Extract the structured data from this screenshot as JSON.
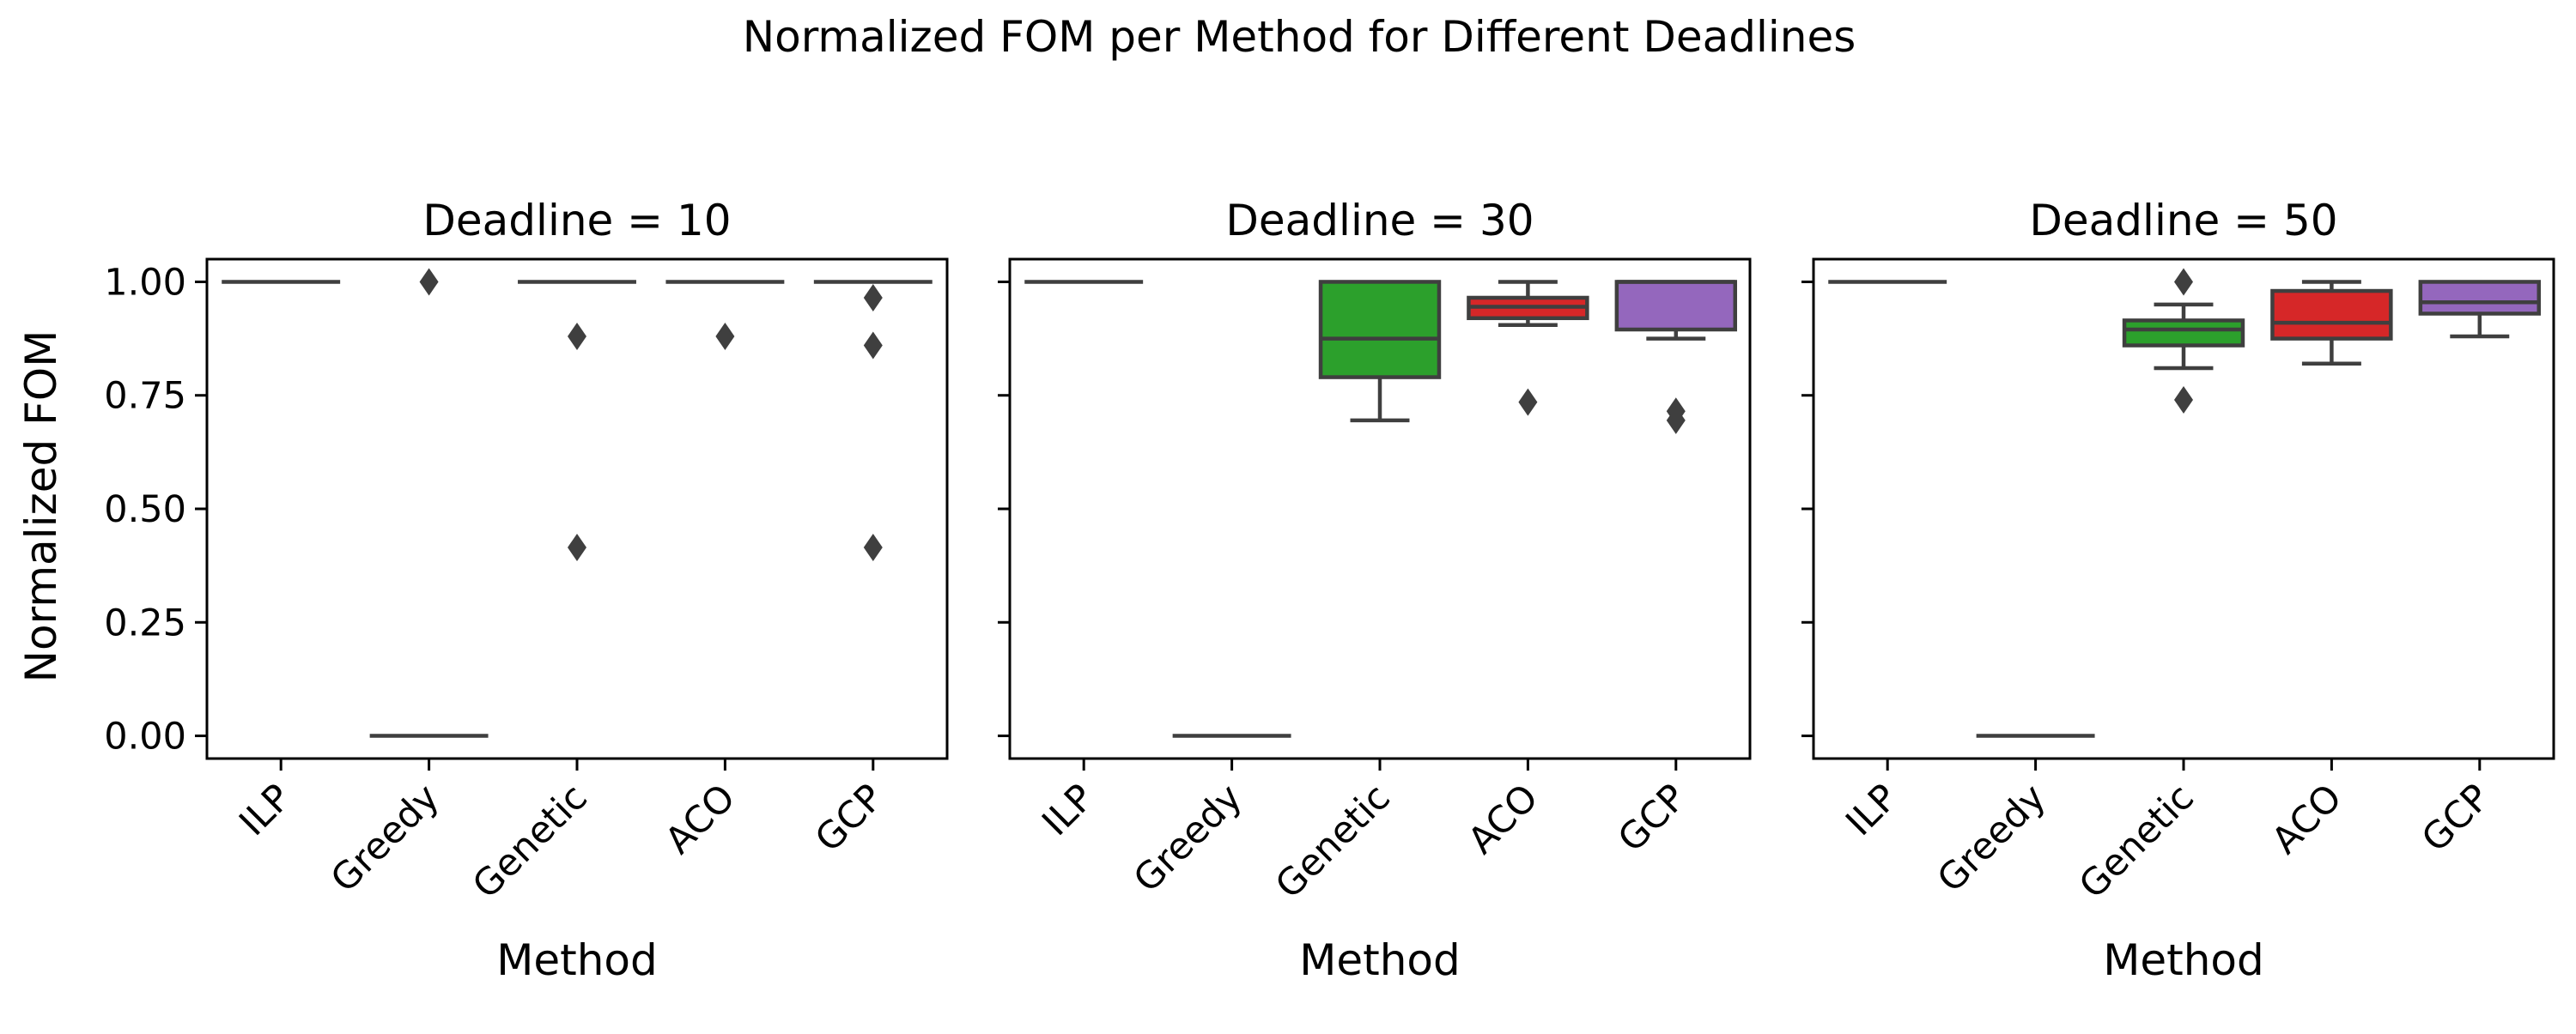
{
  "chart_data": {
    "type": "box",
    "title": "Normalized FOM per Method for Different Deadlines",
    "ylabel": "Normalized FOM",
    "xlabel": "Method",
    "ylim": [
      -0.05,
      1.05
    ],
    "yticks": [
      "0.00",
      "0.25",
      "0.50",
      "0.75",
      "1.00"
    ],
    "ytick_values": [
      0.0,
      0.25,
      0.5,
      0.75,
      1.0
    ],
    "categories": [
      "ILP",
      "Greedy",
      "Genetic",
      "ACO",
      "GCP"
    ],
    "colors": {
      "ILP": "#1f77b4",
      "Greedy": "#ff7f0e",
      "Genetic": "#2ca02c",
      "ACO": "#d62728",
      "GCP": "#9467bd"
    },
    "panels": [
      {
        "title": "Deadline = 10",
        "boxes": [
          {
            "method": "ILP",
            "whislo": 1.0,
            "q1": 1.0,
            "med": 1.0,
            "q3": 1.0,
            "whishi": 1.0,
            "fliers": []
          },
          {
            "method": "Greedy",
            "whislo": 0.0,
            "q1": 0.0,
            "med": 0.0,
            "q3": 0.0,
            "whishi": 0.0,
            "fliers": [
              1.0
            ]
          },
          {
            "method": "Genetic",
            "whislo": 1.0,
            "q1": 1.0,
            "med": 1.0,
            "q3": 1.0,
            "whishi": 1.0,
            "fliers": [
              0.88,
              0.415
            ]
          },
          {
            "method": "ACO",
            "whislo": 1.0,
            "q1": 1.0,
            "med": 1.0,
            "q3": 1.0,
            "whishi": 1.0,
            "fliers": [
              0.88
            ]
          },
          {
            "method": "GCP",
            "whislo": 1.0,
            "q1": 1.0,
            "med": 1.0,
            "q3": 1.0,
            "whishi": 1.0,
            "fliers": [
              0.965,
              0.86,
              0.415
            ]
          }
        ]
      },
      {
        "title": "Deadline = 30",
        "boxes": [
          {
            "method": "ILP",
            "whislo": 1.0,
            "q1": 1.0,
            "med": 1.0,
            "q3": 1.0,
            "whishi": 1.0,
            "fliers": []
          },
          {
            "method": "Greedy",
            "whislo": 0.0,
            "q1": 0.0,
            "med": 0.0,
            "q3": 0.0,
            "whishi": 0.0,
            "fliers": []
          },
          {
            "method": "Genetic",
            "whislo": 0.695,
            "q1": 0.79,
            "med": 0.875,
            "q3": 1.0,
            "whishi": 1.0,
            "fliers": []
          },
          {
            "method": "ACO",
            "whislo": 0.905,
            "q1": 0.92,
            "med": 0.945,
            "q3": 0.965,
            "whishi": 1.0,
            "fliers": [
              0.735
            ]
          },
          {
            "method": "GCP",
            "whislo": 0.875,
            "q1": 0.895,
            "med": 1.0,
            "q3": 1.0,
            "whishi": 1.0,
            "fliers": [
              0.715,
              0.695
            ]
          }
        ]
      },
      {
        "title": "Deadline = 50",
        "boxes": [
          {
            "method": "ILP",
            "whislo": 1.0,
            "q1": 1.0,
            "med": 1.0,
            "q3": 1.0,
            "whishi": 1.0,
            "fliers": []
          },
          {
            "method": "Greedy",
            "whislo": 0.0,
            "q1": 0.0,
            "med": 0.0,
            "q3": 0.0,
            "whishi": 0.0,
            "fliers": []
          },
          {
            "method": "Genetic",
            "whislo": 0.81,
            "q1": 0.86,
            "med": 0.895,
            "q3": 0.915,
            "whishi": 0.95,
            "fliers": [
              1.0,
              0.74
            ]
          },
          {
            "method": "ACO",
            "whislo": 0.82,
            "q1": 0.875,
            "med": 0.91,
            "q3": 0.98,
            "whishi": 1.0,
            "fliers": []
          },
          {
            "method": "GCP",
            "whislo": 0.88,
            "q1": 0.93,
            "med": 0.955,
            "q3": 1.0,
            "whishi": 1.0,
            "fliers": []
          }
        ]
      }
    ]
  }
}
